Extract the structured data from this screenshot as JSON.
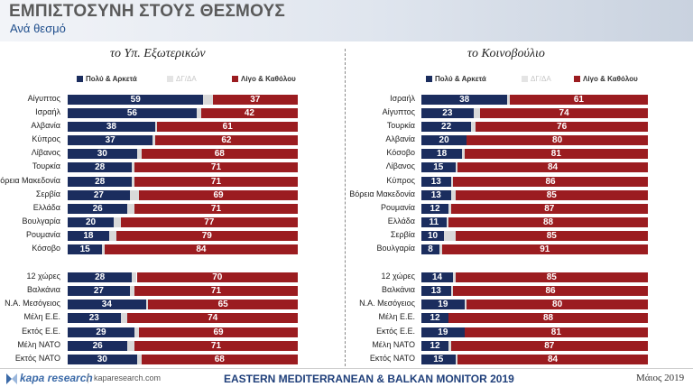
{
  "header": {
    "title": "ΕΜΠΙΣΤΟΣΥΝΗ ΣΤΟΥΣ ΘΕΣΜΟΥΣ",
    "subtitle": "Ανά θεσμό"
  },
  "legend": {
    "positive": "Πολύ & Αρκετά",
    "dk": "ΔΓ/ΔΑ",
    "negative": "Λίγο & Καθόλου"
  },
  "colors": {
    "positive": "#1b2d5e",
    "dk": "#d9d9d9",
    "negative": "#9b1c20"
  },
  "footer": {
    "logo": "kapa research",
    "website": "kaparesearch.com",
    "monitor": "EASTERN MEDITERRANEAN & BALKAN MONITOR 2019",
    "date": "Μάιος 2019"
  },
  "chart_data": [
    {
      "type": "bar",
      "orientation": "horizontal",
      "stacked": true,
      "title": "το Υπ. Εξωτερικών",
      "categories": [
        "Αίγυπτος",
        "Ισραήλ",
        "Αλβανία",
        "Κύπρος",
        "Λίβανος",
        "Τουρκία",
        "Βόρεια Μακεδονία",
        "Σερβία",
        "Ελλάδα",
        "Βουλγαρία",
        "Ρουμανία",
        "Κόσοβο",
        "12 χώρες",
        "Βαλκάνια",
        "Ν.Α. Μεσόγειος",
        "Μέλη Ε.Ε.",
        "Εκτός Ε.Ε.",
        "Μέλη ΝΑΤΟ",
        "Εκτός ΝΑΤΟ"
      ],
      "series": [
        {
          "name": "Πολύ & Αρκετά",
          "values": [
            59,
            56,
            38,
            37,
            30,
            28,
            28,
            27,
            26,
            20,
            18,
            15,
            28,
            27,
            34,
            23,
            29,
            26,
            30
          ]
        },
        {
          "name": "ΔΓ/ΔΑ",
          "values": [
            4,
            2,
            1,
            1,
            2,
            1,
            1,
            4,
            3,
            3,
            3,
            1,
            2,
            2,
            1,
            3,
            2,
            3,
            2
          ]
        },
        {
          "name": "Λίγο & Καθόλου",
          "values": [
            37,
            42,
            61,
            62,
            68,
            71,
            71,
            69,
            71,
            77,
            79,
            84,
            70,
            71,
            65,
            74,
            69,
            71,
            68
          ]
        }
      ],
      "xlim": [
        0,
        100
      ]
    },
    {
      "type": "bar",
      "orientation": "horizontal",
      "stacked": true,
      "title": "το Κοινοβούλιο",
      "categories": [
        "Ισραήλ",
        "Αίγυπτος",
        "Τουρκία",
        "Αλβανία",
        "Κόσοβο",
        "Λίβανος",
        "Κύπρος",
        "Βόρεια Μακεδονία",
        "Ρουμανία",
        "Ελλάδα",
        "Σερβία",
        "Βουλγαρία",
        "12 χώρες",
        "Βαλκάνια",
        "Ν.Α. Μεσόγειος",
        "Μέλη Ε.Ε.",
        "Εκτός Ε.Ε.",
        "Μέλη ΝΑΤΟ",
        "Εκτός ΝΑΤΟ"
      ],
      "series": [
        {
          "name": "Πολύ & Αρκετά",
          "values": [
            38,
            23,
            22,
            20,
            18,
            15,
            13,
            13,
            12,
            11,
            10,
            8,
            14,
            13,
            19,
            12,
            19,
            12,
            15
          ]
        },
        {
          "name": "ΔΓ/ΔΑ",
          "values": [
            1,
            3,
            2,
            0,
            1,
            1,
            1,
            2,
            1,
            1,
            5,
            1,
            1,
            1,
            1,
            0,
            0,
            1,
            1
          ]
        },
        {
          "name": "Λίγο & Καθόλου",
          "values": [
            61,
            74,
            76,
            80,
            81,
            84,
            86,
            85,
            87,
            88,
            85,
            91,
            85,
            86,
            80,
            88,
            81,
            87,
            84
          ]
        }
      ],
      "xlim": [
        0,
        100
      ]
    }
  ]
}
